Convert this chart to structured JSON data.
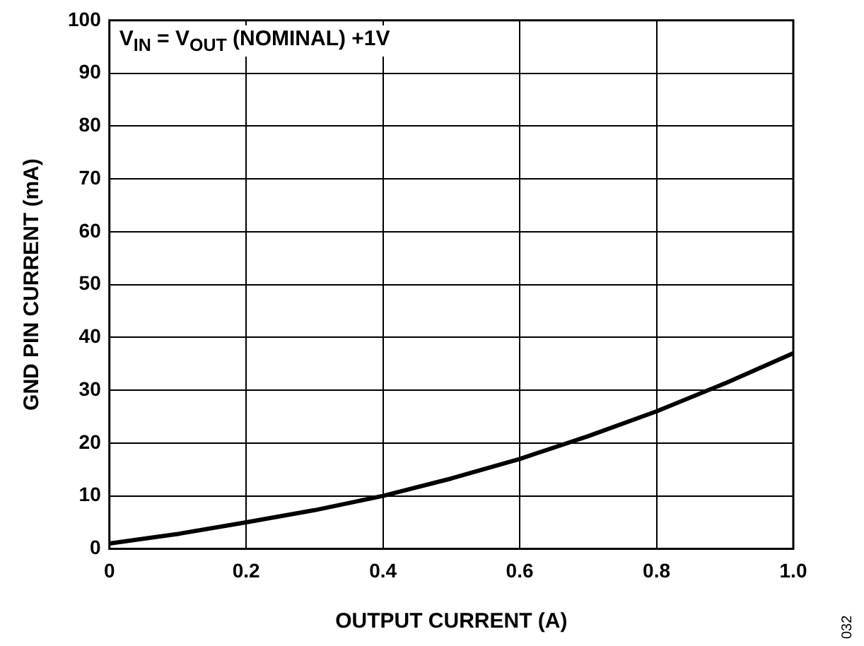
{
  "chart_data": {
    "type": "line",
    "xlabel": "OUTPUT CURRENT (A)",
    "ylabel": "GND PIN CURRENT (mA)",
    "x": [
      0,
      0.1,
      0.2,
      0.3,
      0.4,
      0.5,
      0.6,
      0.7,
      0.8,
      0.9,
      1.0
    ],
    "series": [
      {
        "color": "#000000",
        "values": [
          1,
          2.8,
          5,
          7.3,
          10,
          13.3,
          17,
          21.3,
          26,
          31.3,
          37
        ]
      }
    ],
    "xlim": [
      0,
      1
    ],
    "xticks": [
      0,
      0.2,
      0.4,
      0.6,
      0.8,
      {
        "value": 1,
        "label": "1.0"
      }
    ],
    "ylim": [
      0,
      100
    ],
    "yticks": [
      0,
      10,
      20,
      30,
      40,
      50,
      60,
      70,
      80,
      90,
      100
    ],
    "grid": true,
    "legend": false,
    "marker": "none",
    "line_style": "solid",
    "annotations": [
      "V$_{IN}$ = V$_{OUT}$ (NOMINAL) +1V",
      "032"
    ]
  }
}
